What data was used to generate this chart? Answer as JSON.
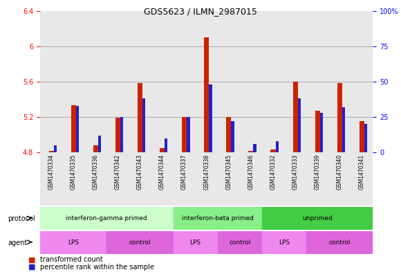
{
  "title": "GDS5623 / ILMN_2987015",
  "samples": [
    "GSM1470334",
    "GSM1470335",
    "GSM1470336",
    "GSM1470342",
    "GSM1470343",
    "GSM1470344",
    "GSM1470337",
    "GSM1470338",
    "GSM1470345",
    "GSM1470346",
    "GSM1470332",
    "GSM1470333",
    "GSM1470339",
    "GSM1470340",
    "GSM1470341"
  ],
  "transformed_count": [
    4.82,
    5.33,
    4.88,
    5.19,
    5.58,
    4.85,
    5.2,
    6.1,
    5.2,
    4.82,
    4.83,
    5.6,
    5.27,
    5.58,
    5.15
  ],
  "percentile_rank": [
    5,
    33,
    12,
    25,
    38,
    10,
    25,
    48,
    22,
    6,
    8,
    38,
    28,
    32,
    20
  ],
  "ylim_left": [
    4.8,
    6.4
  ],
  "ylim_right": [
    0,
    100
  ],
  "yticks_left": [
    4.8,
    5.2,
    5.6,
    6.0,
    6.4
  ],
  "yticks_right": [
    0,
    25,
    50,
    75,
    100
  ],
  "ytick_labels_left": [
    "4.8",
    "5.2",
    "5.6",
    "6",
    "6.4"
  ],
  "ytick_labels_right": [
    "0",
    "25",
    "50",
    "75",
    "100%"
  ],
  "bar_color_red": "#cc2200",
  "bar_color_blue": "#2222cc",
  "bg_color": "#e8e8e8",
  "protocol_groups": [
    {
      "label": "interferon-gamma primed",
      "start": 0,
      "end": 6,
      "color": "#ccffcc"
    },
    {
      "label": "interferon-beta primed",
      "start": 6,
      "end": 10,
      "color": "#88ee88"
    },
    {
      "label": "unprimed",
      "start": 10,
      "end": 15,
      "color": "#44cc44"
    }
  ],
  "agent_groups": [
    {
      "label": "LPS",
      "start": 0,
      "end": 3,
      "color": "#ee88ee"
    },
    {
      "label": "control",
      "start": 3,
      "end": 6,
      "color": "#dd66dd"
    },
    {
      "label": "LPS",
      "start": 6,
      "end": 8,
      "color": "#ee88ee"
    },
    {
      "label": "control",
      "start": 8,
      "end": 10,
      "color": "#dd66dd"
    },
    {
      "label": "LPS",
      "start": 10,
      "end": 12,
      "color": "#ee88ee"
    },
    {
      "label": "control",
      "start": 12,
      "end": 15,
      "color": "#dd66dd"
    }
  ]
}
